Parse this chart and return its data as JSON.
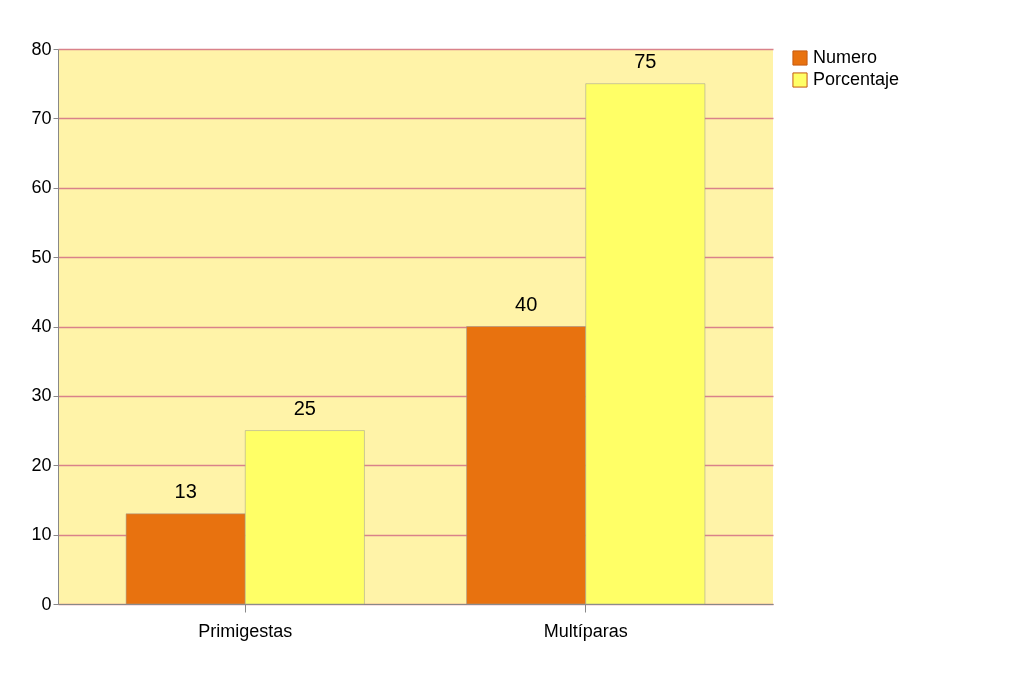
{
  "chart_data": {
    "type": "bar",
    "categories": [
      "Primigestas",
      "Multíparas"
    ],
    "series": [
      {
        "name": "Numero",
        "color": "#e8720f",
        "values": [
          13,
          40
        ]
      },
      {
        "name": "Porcentaje",
        "color": "#ffff66",
        "values": [
          25,
          75
        ]
      }
    ],
    "ylim": [
      0,
      80
    ],
    "yticks": [
      0,
      10,
      20,
      30,
      40,
      50,
      60,
      70,
      80
    ],
    "grid": "y",
    "legend": "right",
    "data_labels": true
  }
}
